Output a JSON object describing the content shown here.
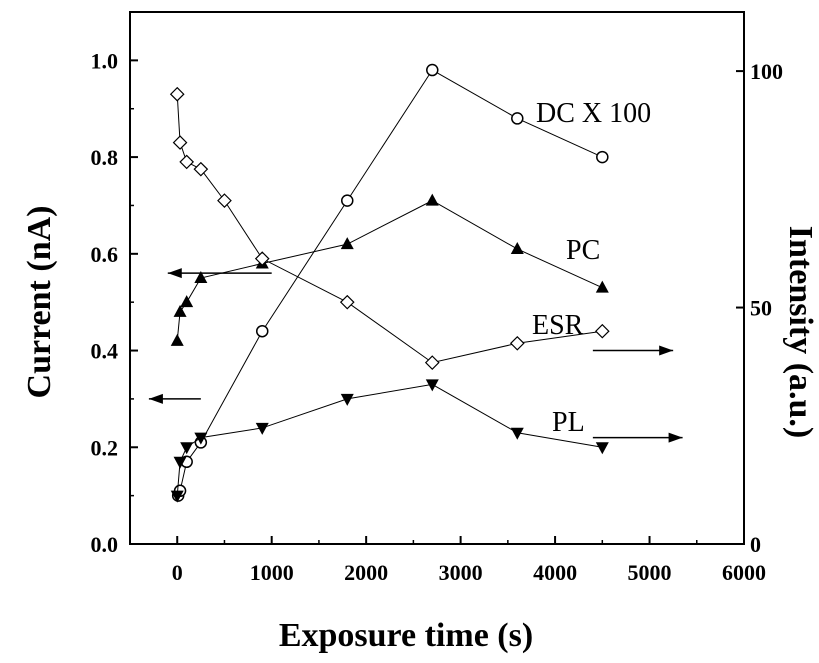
{
  "chart_data": {
    "type": "line",
    "xlabel": "Exposure time (s)",
    "ylabel": "Current (nA)",
    "y2label": "Intensity (a.u.)",
    "xlim": [
      -500,
      6000
    ],
    "ylim": [
      0.0,
      1.1
    ],
    "y2lim": [
      0,
      1.1
    ],
    "xticks": [
      "0",
      "1000",
      "2000",
      "3000",
      "4000",
      "5000",
      "6000"
    ],
    "yticks": [
      "0.0",
      "0.2",
      "0.4",
      "0.6",
      "0.8",
      "1.0"
    ],
    "y2ticks": [
      "0",
      "50",
      "100"
    ],
    "grid": false,
    "series": [
      {
        "name": "DC X 100",
        "axis": "left",
        "marker": "open-circle",
        "x": [
          10,
          30,
          100,
          250,
          900,
          1800,
          2700,
          3600,
          4500
        ],
        "y": [
          0.1,
          0.11,
          0.17,
          0.21,
          0.44,
          0.71,
          0.98,
          0.88,
          0.8
        ]
      },
      {
        "name": "PC",
        "axis": "left",
        "marker": "filled-triangle-up",
        "x": [
          0,
          30,
          100,
          250,
          900,
          1800,
          2700,
          3600,
          4500
        ],
        "y": [
          0.42,
          0.48,
          0.5,
          0.55,
          0.58,
          0.62,
          0.71,
          0.61,
          0.53
        ]
      },
      {
        "name": "ESR",
        "axis": "right",
        "marker": "open-diamond",
        "x": [
          0,
          30,
          100,
          250,
          500,
          900,
          1800,
          2700,
          3600,
          4500
        ],
        "y": [
          0.93,
          0.83,
          0.79,
          0.775,
          0.71,
          0.59,
          0.5,
          0.375,
          0.415,
          0.44
        ]
      },
      {
        "name": "PL",
        "axis": "right",
        "marker": "filled-triangle-down",
        "x": [
          0,
          30,
          100,
          250,
          900,
          1800,
          2700,
          3600,
          4500
        ],
        "y": [
          0.1,
          0.17,
          0.2,
          0.22,
          0.24,
          0.3,
          0.33,
          0.23,
          0.2
        ]
      }
    ],
    "axis_indicator_arrows": [
      {
        "target_axis": "left",
        "y": 0.56,
        "x_from": 1000,
        "x_to": -100
      },
      {
        "target_axis": "left",
        "y": 0.3,
        "x_from": 250,
        "x_to": -300
      },
      {
        "target_axis": "right",
        "y": 0.4,
        "x_from": 4400,
        "x_to": 5250
      },
      {
        "target_axis": "right",
        "y": 0.22,
        "x_from": 4400,
        "x_to": 5350
      }
    ]
  }
}
